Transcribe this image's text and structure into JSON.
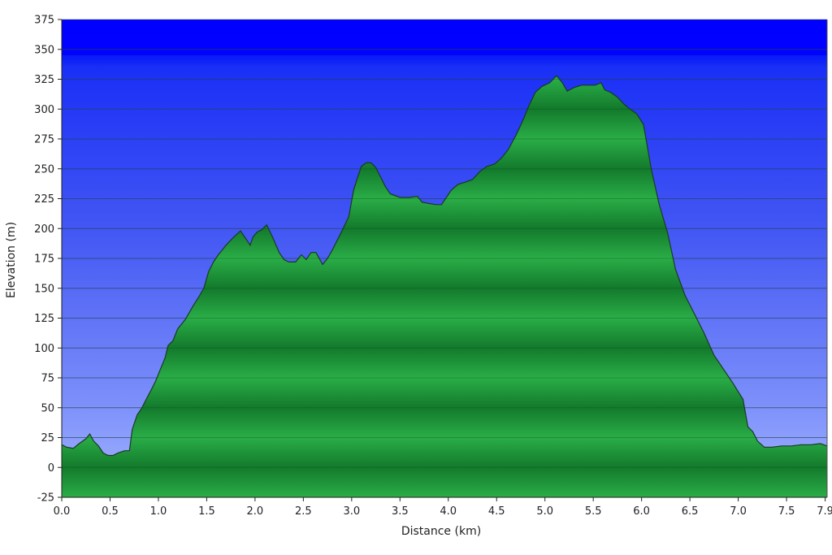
{
  "chart_data": {
    "type": "area",
    "xlabel": "Distance  (km)",
    "ylabel": "Elevation (m)",
    "xlim": [
      0,
      7.92
    ],
    "ylim": [
      -25,
      375
    ],
    "x_ticks": [
      0.0,
      0.5,
      1.0,
      1.5,
      2.0,
      2.5,
      3.0,
      3.5,
      4.0,
      4.5,
      5.0,
      5.5,
      6.0,
      6.5,
      7.0,
      7.5,
      7.9
    ],
    "x_tick_labels": [
      "0.0",
      "0.5",
      "1.0",
      "1.5",
      "2.0",
      "2.5",
      "3.0",
      "3.5",
      "4.0",
      "4.5",
      "5.0",
      "5.5",
      "6.0",
      "6.5",
      "7.0",
      "7.5",
      "7.9"
    ],
    "y_ticks": [
      -25,
      0,
      25,
      50,
      75,
      100,
      125,
      150,
      175,
      200,
      225,
      250,
      275,
      300,
      325,
      350,
      375
    ],
    "grid": true,
    "legend": "none",
    "colors": {
      "fill": "#1f9c3c",
      "fill_dark": "#137a2c",
      "outline": "#1a3a22",
      "bg_top": "#0000ff",
      "bg_bottom": "#9ab0ff"
    },
    "series": [
      {
        "x": [
          0.0,
          0.05,
          0.12,
          0.18,
          0.25,
          0.29,
          0.33,
          0.38,
          0.43,
          0.48,
          0.53,
          0.58,
          0.65,
          0.7,
          0.73,
          0.78,
          0.83,
          0.88,
          0.92,
          0.97,
          1.02,
          1.07,
          1.1,
          1.15,
          1.2,
          1.28,
          1.35,
          1.42,
          1.47,
          1.52,
          1.57,
          1.62,
          1.7,
          1.77,
          1.85,
          1.9,
          1.95,
          1.98,
          2.02,
          2.07,
          2.12,
          2.18,
          2.25,
          2.3,
          2.35,
          2.42,
          2.48,
          2.53,
          2.58,
          2.63,
          2.7,
          2.75,
          2.8,
          2.85,
          2.9,
          2.97,
          3.02,
          3.05,
          3.1,
          3.15,
          3.2,
          3.25,
          3.3,
          3.35,
          3.4,
          3.5,
          3.6,
          3.68,
          3.73,
          3.8,
          3.87,
          3.93,
          3.98,
          4.03,
          4.1,
          4.18,
          4.25,
          4.33,
          4.4,
          4.48,
          4.55,
          4.62,
          4.7,
          4.77,
          4.83,
          4.9,
          4.97,
          5.05,
          5.12,
          5.18,
          5.23,
          5.3,
          5.38,
          5.45,
          5.52,
          5.58,
          5.62,
          5.68,
          5.75,
          5.82,
          5.88,
          5.95,
          6.02,
          6.1,
          6.18,
          6.27,
          6.35,
          6.45,
          6.55,
          6.65,
          6.75,
          6.85,
          6.95,
          7.05,
          7.1,
          7.15,
          7.2,
          7.27,
          7.35,
          7.45,
          7.55,
          7.65,
          7.75,
          7.85,
          7.92
        ],
        "y": [
          19,
          17,
          16,
          20,
          24,
          28,
          22,
          18,
          12,
          10,
          10,
          12,
          14,
          14,
          32,
          44,
          50,
          58,
          64,
          72,
          82,
          92,
          102,
          106,
          116,
          124,
          134,
          143,
          150,
          164,
          172,
          178,
          186,
          192,
          198,
          192,
          186,
          193,
          197,
          199,
          203,
          193,
          180,
          174,
          172,
          172,
          178,
          174,
          180,
          180,
          170,
          175,
          182,
          190,
          198,
          210,
          232,
          240,
          252,
          255,
          255,
          251,
          243,
          235,
          229,
          226,
          226,
          227,
          222,
          221,
          220,
          220,
          226,
          232,
          237,
          239,
          241,
          248,
          252,
          254,
          259,
          266,
          278,
          290,
          302,
          314,
          319,
          322,
          328,
          322,
          315,
          318,
          320,
          320,
          320,
          322,
          316,
          314,
          310,
          304,
          300,
          296,
          287,
          250,
          221,
          196,
          166,
          144,
          128,
          112,
          94,
          82,
          70,
          57,
          34,
          30,
          22,
          17,
          17,
          18,
          18,
          19,
          19,
          20,
          18
        ]
      }
    ]
  }
}
